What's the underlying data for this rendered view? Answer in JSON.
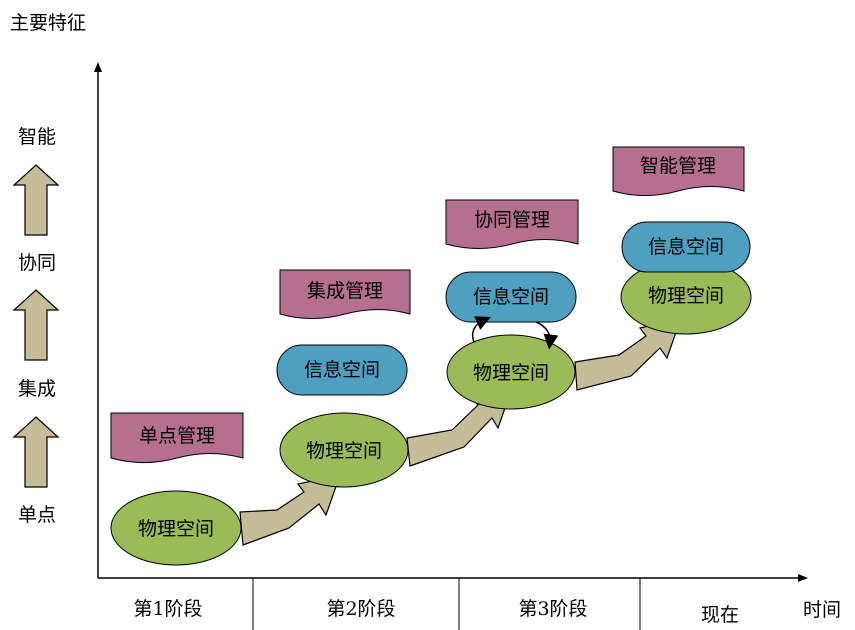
{
  "y_axis": {
    "title": "主要特征",
    "levels": [
      "智能",
      "协同",
      "集成",
      "单点"
    ]
  },
  "x_axis": {
    "title": "时间",
    "stages": [
      "第1阶段",
      "第2阶段",
      "第3阶段",
      "现在"
    ]
  },
  "stages": [
    {
      "banner": "单点管理",
      "physical": "物理空间"
    },
    {
      "banner": "集成管理",
      "physical": "物理空间",
      "info": "信息空间"
    },
    {
      "banner": "协同管理",
      "physical": "物理空间",
      "info": "信息空间"
    },
    {
      "banner": "智能管理",
      "physical": "物理空间",
      "info": "信息空间"
    }
  ],
  "colors": {
    "physical_fill": "#9bbb59",
    "info_fill": "#4f9fc0",
    "banner_fill": "#b5708f",
    "arrow_fill": "#c4bd97"
  }
}
